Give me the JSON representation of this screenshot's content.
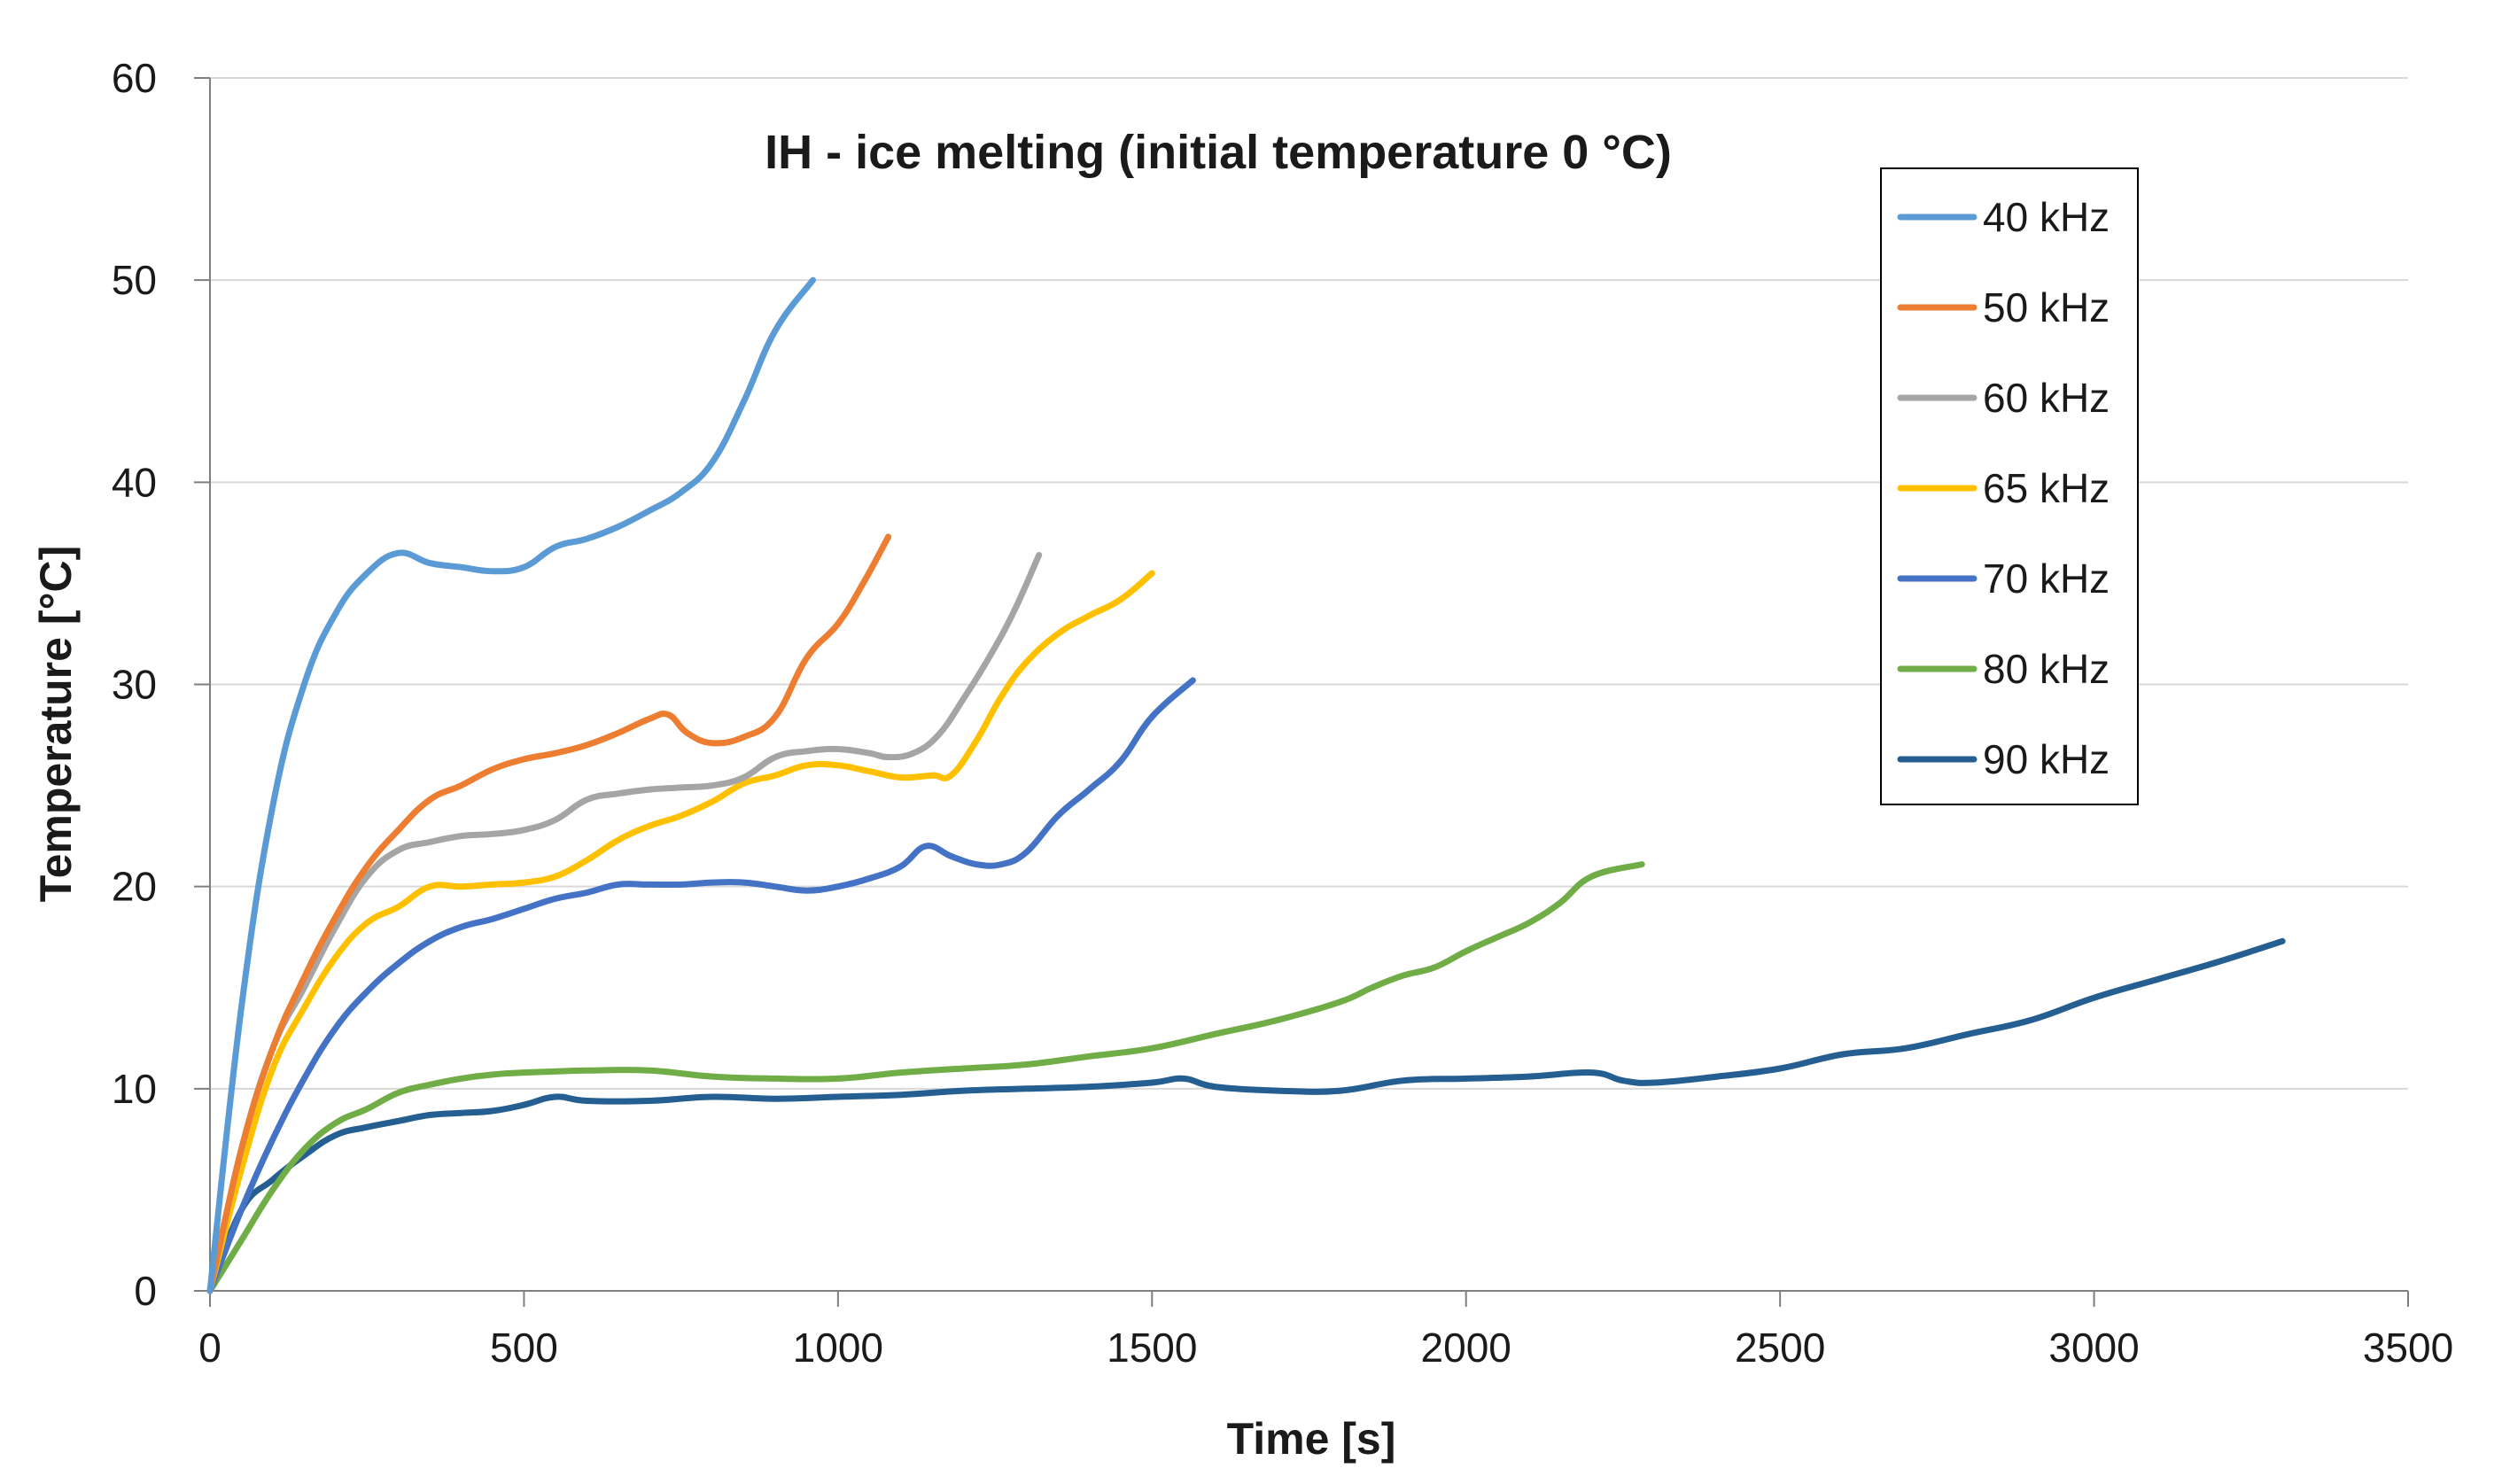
{
  "chart_data": {
    "type": "line",
    "title": "IH - ice melting (initial temperature 0 °C)",
    "xlabel": "Time [s]",
    "ylabel": "Temperature [°C]",
    "xlim": [
      0,
      3500
    ],
    "ylim": [
      0,
      60
    ],
    "xticks": [
      0,
      500,
      1000,
      1500,
      2000,
      2500,
      3000,
      3500
    ],
    "yticks": [
      0,
      10,
      20,
      30,
      40,
      50,
      60
    ],
    "grid": "horizontal",
    "legend_position": "top-right",
    "series": [
      {
        "name": "40 kHz",
        "color": "#5b9bd5",
        "x": [
          0,
          50,
          100,
          150,
          200,
          250,
          300,
          350,
          400,
          450,
          500,
          550,
          600,
          650,
          700,
          750,
          800,
          850,
          900,
          960
        ],
        "y": [
          0,
          14,
          24,
          30,
          33.5,
          35.5,
          36.5,
          36,
          35.8,
          35.6,
          35.8,
          36.8,
          37.2,
          37.8,
          38.6,
          39.5,
          41,
          44,
          47.5,
          50
        ]
      },
      {
        "name": "50 kHz",
        "color": "#ed7d31",
        "x": [
          0,
          50,
          100,
          150,
          200,
          250,
          300,
          350,
          400,
          450,
          500,
          550,
          600,
          650,
          700,
          730,
          760,
          800,
          850,
          900,
          950,
          1000,
          1040,
          1080
        ],
        "y": [
          0,
          7,
          12,
          15.5,
          18.5,
          21,
          22.8,
          24.3,
          25,
          25.8,
          26.3,
          26.6,
          27,
          27.6,
          28.3,
          28.5,
          27.6,
          27.1,
          27.4,
          28.4,
          31.3,
          33,
          35,
          37.3
        ]
      },
      {
        "name": "60 kHz",
        "color": "#a5a5a5",
        "x": [
          0,
          50,
          100,
          150,
          200,
          250,
          300,
          350,
          400,
          450,
          500,
          550,
          600,
          650,
          700,
          750,
          800,
          850,
          900,
          950,
          1000,
          1050,
          1080,
          1120,
          1160,
          1200,
          1240,
          1280,
          1320
        ],
        "y": [
          0,
          7,
          12,
          15,
          18,
          20.5,
          21.8,
          22.2,
          22.5,
          22.6,
          22.8,
          23.3,
          24.3,
          24.6,
          24.8,
          24.9,
          25,
          25.4,
          26.4,
          26.7,
          26.8,
          26.6,
          26.4,
          26.6,
          27.5,
          29.3,
          31.3,
          33.6,
          36.4
        ]
      },
      {
        "name": "65 kHz",
        "color": "#ffc000",
        "x": [
          0,
          50,
          100,
          150,
          200,
          250,
          300,
          350,
          400,
          450,
          500,
          550,
          600,
          650,
          700,
          750,
          800,
          850,
          900,
          950,
          1000,
          1050,
          1100,
          1150,
          1180,
          1220,
          1260,
          1300,
          1350,
          1400,
          1450,
          1500
        ],
        "y": [
          0,
          6,
          11,
          14,
          16.5,
          18.2,
          19,
          20,
          20,
          20.1,
          20.2,
          20.5,
          21.3,
          22.3,
          23,
          23.5,
          24.2,
          25.1,
          25.5,
          26,
          26,
          25.7,
          25.4,
          25.5,
          25.5,
          27.2,
          29.4,
          31.1,
          32.5,
          33.4,
          34.2,
          35.5
        ]
      },
      {
        "name": "70 kHz",
        "color": "#4472c4",
        "x": [
          0,
          50,
          100,
          150,
          200,
          250,
          300,
          350,
          400,
          450,
          500,
          550,
          600,
          650,
          700,
          750,
          800,
          850,
          900,
          950,
          1000,
          1050,
          1100,
          1140,
          1180,
          1220,
          1260,
          1300,
          1350,
          1400,
          1450,
          1500,
          1565
        ],
        "y": [
          0,
          4,
          7.5,
          10.5,
          13,
          14.8,
          16.2,
          17.3,
          18,
          18.4,
          18.9,
          19.4,
          19.7,
          20.1,
          20.1,
          20.1,
          20.2,
          20.2,
          20,
          19.8,
          20,
          20.4,
          21,
          22,
          21.5,
          21.1,
          21.1,
          21.7,
          23.5,
          24.8,
          26.2,
          28.4,
          30.2
        ]
      },
      {
        "name": "80 kHz",
        "color": "#70ad47",
        "x": [
          0,
          50,
          100,
          150,
          200,
          250,
          300,
          350,
          400,
          450,
          500,
          600,
          700,
          800,
          900,
          1000,
          1100,
          1200,
          1300,
          1400,
          1500,
          1600,
          1700,
          1800,
          1850,
          1900,
          1950,
          2000,
          2050,
          2100,
          2150,
          2200,
          2280
        ],
        "y": [
          0,
          2.5,
          5,
          7,
          8.3,
          9,
          9.8,
          10.2,
          10.5,
          10.7,
          10.8,
          10.9,
          10.9,
          10.6,
          10.5,
          10.5,
          10.8,
          11,
          11.2,
          11.6,
          12,
          12.7,
          13.4,
          14.3,
          15,
          15.6,
          16,
          16.8,
          17.5,
          18.2,
          19.2,
          20.5,
          21.1
        ]
      },
      {
        "name": "90 kHz",
        "color": "#255e91",
        "x": [
          0,
          50,
          100,
          150,
          200,
          250,
          300,
          350,
          400,
          450,
          500,
          550,
          600,
          700,
          800,
          900,
          1000,
          1100,
          1200,
          1300,
          1400,
          1500,
          1550,
          1600,
          1700,
          1800,
          1900,
          2000,
          2100,
          2200,
          2250,
          2300,
          2400,
          2500,
          2600,
          2700,
          2800,
          2900,
          3000,
          3100,
          3200,
          3300
        ],
        "y": [
          0,
          4,
          5.5,
          6.7,
          7.7,
          8.1,
          8.4,
          8.7,
          8.8,
          8.9,
          9.2,
          9.6,
          9.4,
          9.4,
          9.6,
          9.5,
          9.6,
          9.7,
          9.9,
          10,
          10.1,
          10.3,
          10.5,
          10.1,
          9.9,
          9.9,
          10.4,
          10.5,
          10.6,
          10.8,
          10.4,
          10.3,
          10.6,
          11,
          11.7,
          12,
          12.7,
          13.4,
          14.5,
          15.4,
          16.3,
          17.3
        ]
      }
    ]
  }
}
